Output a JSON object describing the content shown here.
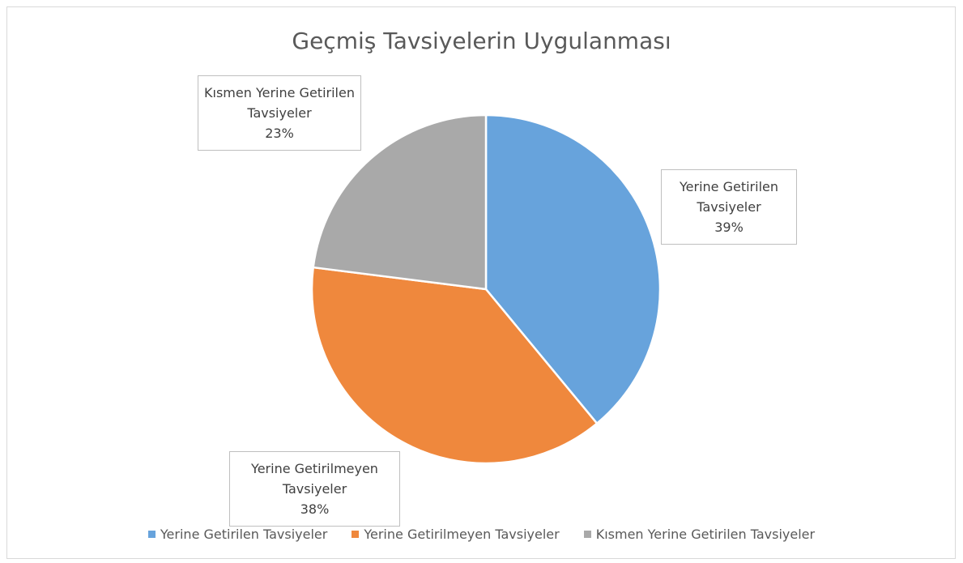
{
  "chart_data": {
    "type": "pie",
    "title": "Geçmiş Tavsiyelerin Uygulanması",
    "categories": [
      "Yerine Getirilen Tavsiyeler",
      "Yerine Getirilmeyen Tavsiyeler",
      "Kısmen Yerine Getirilen Tavsiyeler"
    ],
    "values": [
      39,
      38,
      23
    ],
    "value_labels": [
      "39%",
      "38%",
      "23%"
    ],
    "colors": [
      "#67a3dc",
      "#ef883d",
      "#a9a9a9"
    ],
    "legend": "bottom"
  }
}
